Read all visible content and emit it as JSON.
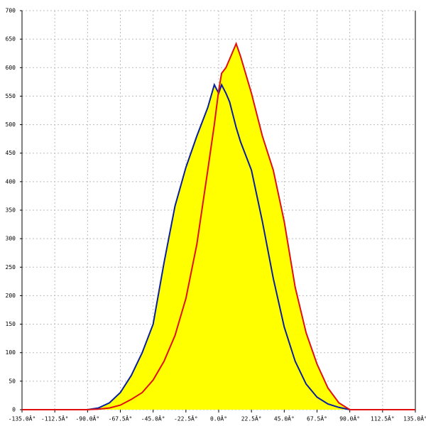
{
  "chart_data": {
    "type": "line",
    "x": [
      -135,
      -90,
      -82.5,
      -75,
      -67.5,
      -60,
      -52.5,
      -45,
      -37.5,
      -30,
      -22.5,
      -15,
      -7.5,
      -3,
      0,
      2,
      5,
      7.5,
      10,
      12,
      15,
      22.5,
      30,
      37.5,
      45,
      52.5,
      60,
      67.5,
      75,
      82.5,
      90,
      135
    ],
    "series": [
      {
        "color": "#0a1ea0",
        "values": [
          0,
          0,
          3,
          12,
          30,
          60,
          100,
          150,
          258,
          357,
          425,
          480,
          530,
          570,
          555,
          570,
          555,
          540,
          515,
          495,
          470,
          420,
          330,
          230,
          145,
          85,
          45,
          22,
          10,
          4,
          0,
          0
        ]
      },
      {
        "color": "#e01010",
        "values": [
          0,
          0,
          1,
          3,
          8,
          18,
          30,
          52,
          85,
          130,
          195,
          290,
          420,
          500,
          560,
          590,
          600,
          615,
          630,
          642,
          620,
          555,
          480,
          420,
          330,
          215,
          135,
          80,
          38,
          12,
          0,
          0
        ]
      }
    ],
    "fill_color": "#ffff00",
    "xlim": [
      -135,
      135
    ],
    "ylim": [
      0,
      700
    ],
    "xticks": [
      {
        "value": -135,
        "label": "-135.0Â°"
      },
      {
        "value": -112.5,
        "label": "-112.5Â°"
      },
      {
        "value": -90,
        "label": "-90.0Â°"
      },
      {
        "value": -67.5,
        "label": "-67.5Â°"
      },
      {
        "value": -45,
        "label": "-45.0Â°"
      },
      {
        "value": -22.5,
        "label": "-22.5Â°"
      },
      {
        "value": 0,
        "label": "0.0Â°"
      },
      {
        "value": 22.5,
        "label": "22.5Â°"
      },
      {
        "value": 45,
        "label": "45.0Â°"
      },
      {
        "value": 67.5,
        "label": "67.5Â°"
      },
      {
        "value": 90,
        "label": "90.0Â°"
      },
      {
        "value": 112.5,
        "label": "112.5Â°"
      },
      {
        "value": 135,
        "label": "135.0Â°"
      }
    ],
    "yticks": [
      0,
      50,
      100,
      150,
      200,
      250,
      300,
      350,
      400,
      450,
      500,
      550,
      600,
      650,
      700
    ],
    "grid": true
  }
}
